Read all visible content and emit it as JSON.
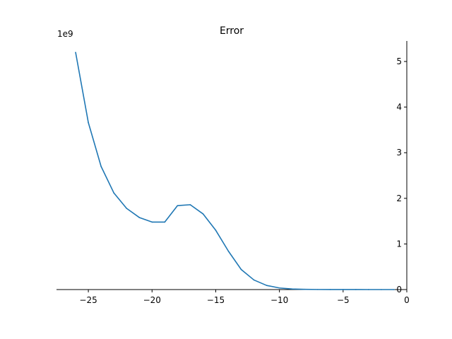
{
  "chart_data": {
    "type": "line",
    "title": "Error",
    "xlabel": "",
    "ylabel": "",
    "y_offset_label": "1e9",
    "xlim": [
      -27.5,
      0
    ],
    "ylim": [
      0,
      5.45
    ],
    "xticks": [
      -25,
      -20,
      -15,
      -10,
      -5,
      0
    ],
    "xtick_labels": [
      "−25",
      "−20",
      "−15",
      "−10",
      "−5",
      "0"
    ],
    "yticks": [
      0,
      1,
      2,
      3,
      4,
      5
    ],
    "ytick_labels": [
      "0",
      "1",
      "2",
      "3",
      "4",
      "5"
    ],
    "y_axis_position": "right",
    "x_axis_at": "y=0",
    "grid": false,
    "colors": {
      "line": "#1f77b4",
      "axis": "#000000"
    },
    "series": [
      {
        "x": [
          -26,
          -25,
          -24,
          -23,
          -22,
          -21,
          -20,
          -19,
          -18,
          -17,
          -16,
          -15,
          -14,
          -13,
          -12,
          -11,
          -10,
          -9,
          -8,
          -7,
          -6,
          -5,
          -4,
          -3,
          -2,
          -1
        ],
        "values": [
          5.2,
          3.66,
          2.7,
          2.12,
          1.78,
          1.58,
          1.48,
          1.48,
          1.84,
          1.86,
          1.66,
          1.3,
          0.84,
          0.44,
          0.21,
          0.09,
          0.035,
          0.012,
          0.005,
          0.002,
          0.001,
          0.0005,
          0.0003,
          0.0002,
          0.0001,
          0.0001
        ]
      }
    ]
  }
}
